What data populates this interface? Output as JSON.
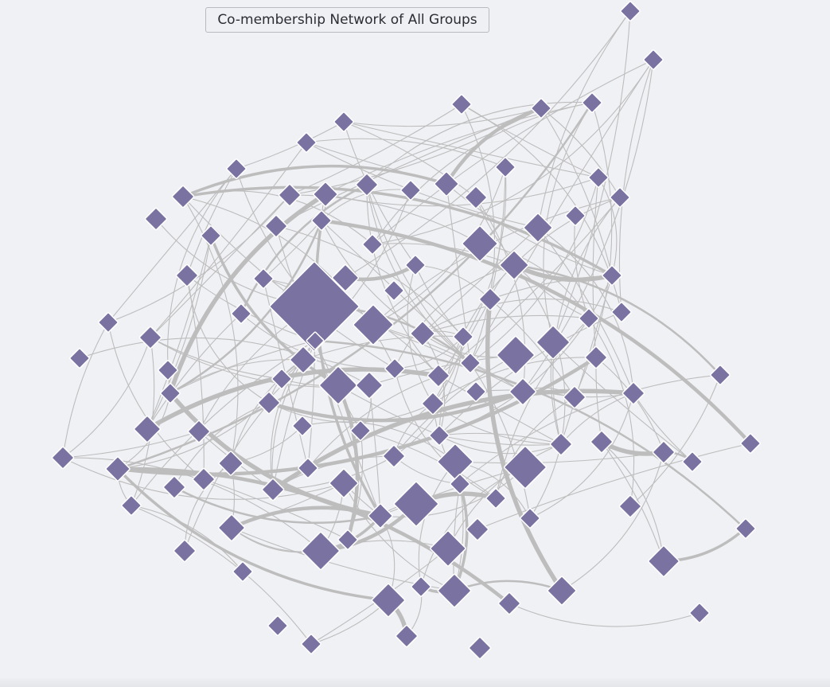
{
  "title": "Co-membership Network of All Groups",
  "colors": {
    "background": "#f0f1f5",
    "node_fill": "#7a73a1",
    "node_stroke": "#ffffff",
    "edge": "#bdbdbd"
  },
  "graph": {
    "node_shape": "diamond",
    "nodes": [
      {
        "id": "n1"
      },
      {
        "id": "n2"
      },
      {
        "id": "n3"
      },
      {
        "id": "n4"
      },
      {
        "id": "n5"
      },
      {
        "id": "n6"
      },
      {
        "id": "n7"
      },
      {
        "id": "n8"
      },
      {
        "id": "n9"
      },
      {
        "id": "n10"
      },
      {
        "id": "n11"
      },
      {
        "id": "n12"
      },
      {
        "id": "n13"
      },
      {
        "id": "n14"
      },
      {
        "id": "n15"
      },
      {
        "id": "n16"
      },
      {
        "id": "n17"
      },
      {
        "id": "n18"
      },
      {
        "id": "n19"
      },
      {
        "id": "n20"
      },
      {
        "id": "n21"
      },
      {
        "id": "n22"
      },
      {
        "id": "n23"
      },
      {
        "id": "n24"
      },
      {
        "id": "n25"
      },
      {
        "id": "n26"
      },
      {
        "id": "n27"
      },
      {
        "id": "n28"
      },
      {
        "id": "n29"
      },
      {
        "id": "n30"
      },
      {
        "id": "n31"
      },
      {
        "id": "n32"
      },
      {
        "id": "n33"
      },
      {
        "id": "n34"
      },
      {
        "id": "n35"
      },
      {
        "id": "n36"
      },
      {
        "id": "n37"
      },
      {
        "id": "n38"
      },
      {
        "id": "n39"
      },
      {
        "id": "n40"
      },
      {
        "id": "n41"
      },
      {
        "id": "n42"
      },
      {
        "id": "n43"
      },
      {
        "id": "n44"
      },
      {
        "id": "n45"
      },
      {
        "id": "n46"
      },
      {
        "id": "n47"
      },
      {
        "id": "n48"
      },
      {
        "id": "n49"
      },
      {
        "id": "n50"
      },
      {
        "id": "n51"
      },
      {
        "id": "n52"
      },
      {
        "id": "n53"
      },
      {
        "id": "n54"
      },
      {
        "id": "n55"
      },
      {
        "id": "n56"
      },
      {
        "id": "n57"
      },
      {
        "id": "n58"
      },
      {
        "id": "n59"
      },
      {
        "id": "n60"
      },
      {
        "id": "n61"
      },
      {
        "id": "n62"
      },
      {
        "id": "n63"
      },
      {
        "id": "n64"
      },
      {
        "id": "n65"
      },
      {
        "id": "n66"
      },
      {
        "id": "n67"
      },
      {
        "id": "n68"
      },
      {
        "id": "n69"
      },
      {
        "id": "n70"
      },
      {
        "id": "n71"
      },
      {
        "id": "n72"
      },
      {
        "id": "n73"
      },
      {
        "id": "n74"
      },
      {
        "id": "n75"
      },
      {
        "id": "n76"
      },
      {
        "id": "n77"
      },
      {
        "id": "n78"
      },
      {
        "id": "n79"
      },
      {
        "id": "n80"
      },
      {
        "id": "n81"
      },
      {
        "id": "n82"
      },
      {
        "id": "n83"
      },
      {
        "id": "n84"
      },
      {
        "id": "n85"
      },
      {
        "id": "n86"
      },
      {
        "id": "n87"
      },
      {
        "id": "n88"
      },
      {
        "id": "n89"
      },
      {
        "id": "n90"
      },
      {
        "id": "n91"
      },
      {
        "id": "n92"
      },
      {
        "id": "n93"
      },
      {
        "id": "n94"
      },
      {
        "id": "n95"
      },
      {
        "id": "n96"
      },
      {
        "id": "n97"
      },
      {
        "id": "n98"
      },
      {
        "id": "n99"
      },
      {
        "id": "n100"
      },
      {
        "id": "n101"
      },
      {
        "id": "n102"
      },
      {
        "id": "n103"
      },
      {
        "id": "n104"
      },
      {
        "id": "n105"
      },
      {
        "id": "n106"
      },
      {
        "id": "n107"
      },
      {
        "id": "n108"
      },
      {
        "id": "n109"
      },
      {
        "id": "n110"
      },
      {
        "id": "n111"
      },
      {
        "id": "n112"
      },
      {
        "id": "n113"
      }
    ],
    "thick_edges": [
      [
        "n22",
        "n56"
      ],
      [
        "n22",
        "n89"
      ],
      [
        "n22",
        "n73"
      ],
      [
        "n56",
        "n89"
      ],
      [
        "n89",
        "n83"
      ],
      [
        "n97",
        "n89"
      ],
      [
        "n92",
        "n89"
      ],
      [
        "n107",
        "n104"
      ],
      [
        "n102",
        "n103"
      ],
      [
        "n102",
        "n82"
      ],
      [
        "n28",
        "n31"
      ],
      [
        "n26",
        "n32"
      ],
      [
        "n26",
        "n61"
      ],
      [
        "n16",
        "n14"
      ],
      [
        "n16",
        "n4"
      ],
      [
        "n12",
        "n56"
      ],
      [
        "n3",
        "n79"
      ],
      [
        "n79",
        "n104"
      ],
      [
        "n79",
        "n105"
      ],
      [
        "n70",
        "n71"
      ],
      [
        "n71",
        "n72"
      ],
      [
        "n20",
        "n52"
      ],
      [
        "n52",
        "n94"
      ],
      [
        "n35",
        "n103"
      ],
      [
        "n34",
        "n51"
      ],
      [
        "n99",
        "n112"
      ],
      [
        "n46",
        "n79"
      ],
      [
        "n54",
        "n65"
      ],
      [
        "n111",
        "n112"
      ],
      [
        "n101",
        "n102"
      ],
      [
        "n88",
        "n97"
      ],
      [
        "n86",
        "n88"
      ],
      [
        "n36",
        "n11"
      ],
      [
        "n32",
        "n14"
      ],
      [
        "n58",
        "n62"
      ],
      [
        "n60",
        "n85"
      ]
    ]
  }
}
